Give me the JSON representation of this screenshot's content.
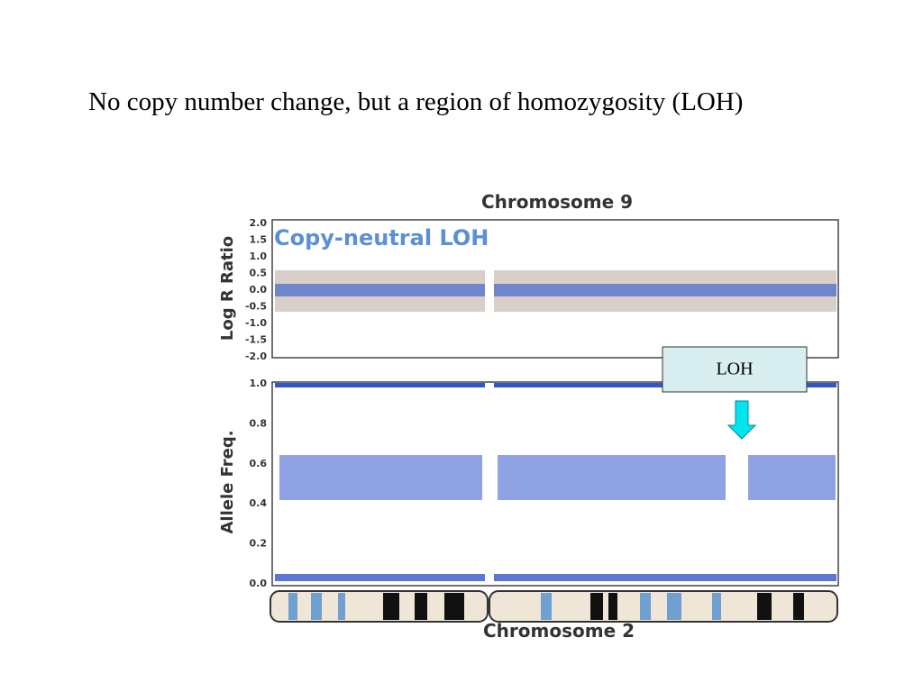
{
  "slide": {
    "title": "No copy number change, but a region of homozygosity (LOH)"
  },
  "figure": {
    "top_title": "Chromosome 9",
    "annotation": "Copy-neutral LOH",
    "top_ylabel": "Log R Ratio",
    "top_ticks": [
      "2.0",
      "1.5",
      "1.0",
      "0.5",
      "0.0",
      "-0.5",
      "-1.0",
      "-1.5",
      "-2.0"
    ],
    "bottom_ylabel": "Allele Freq.",
    "bottom_ticks": [
      "1.0",
      "0.8",
      "0.6",
      "0.4",
      "0.2",
      "0.0"
    ],
    "bottom_title": "Chromosome 2"
  },
  "callout": {
    "label": "LOH"
  }
}
